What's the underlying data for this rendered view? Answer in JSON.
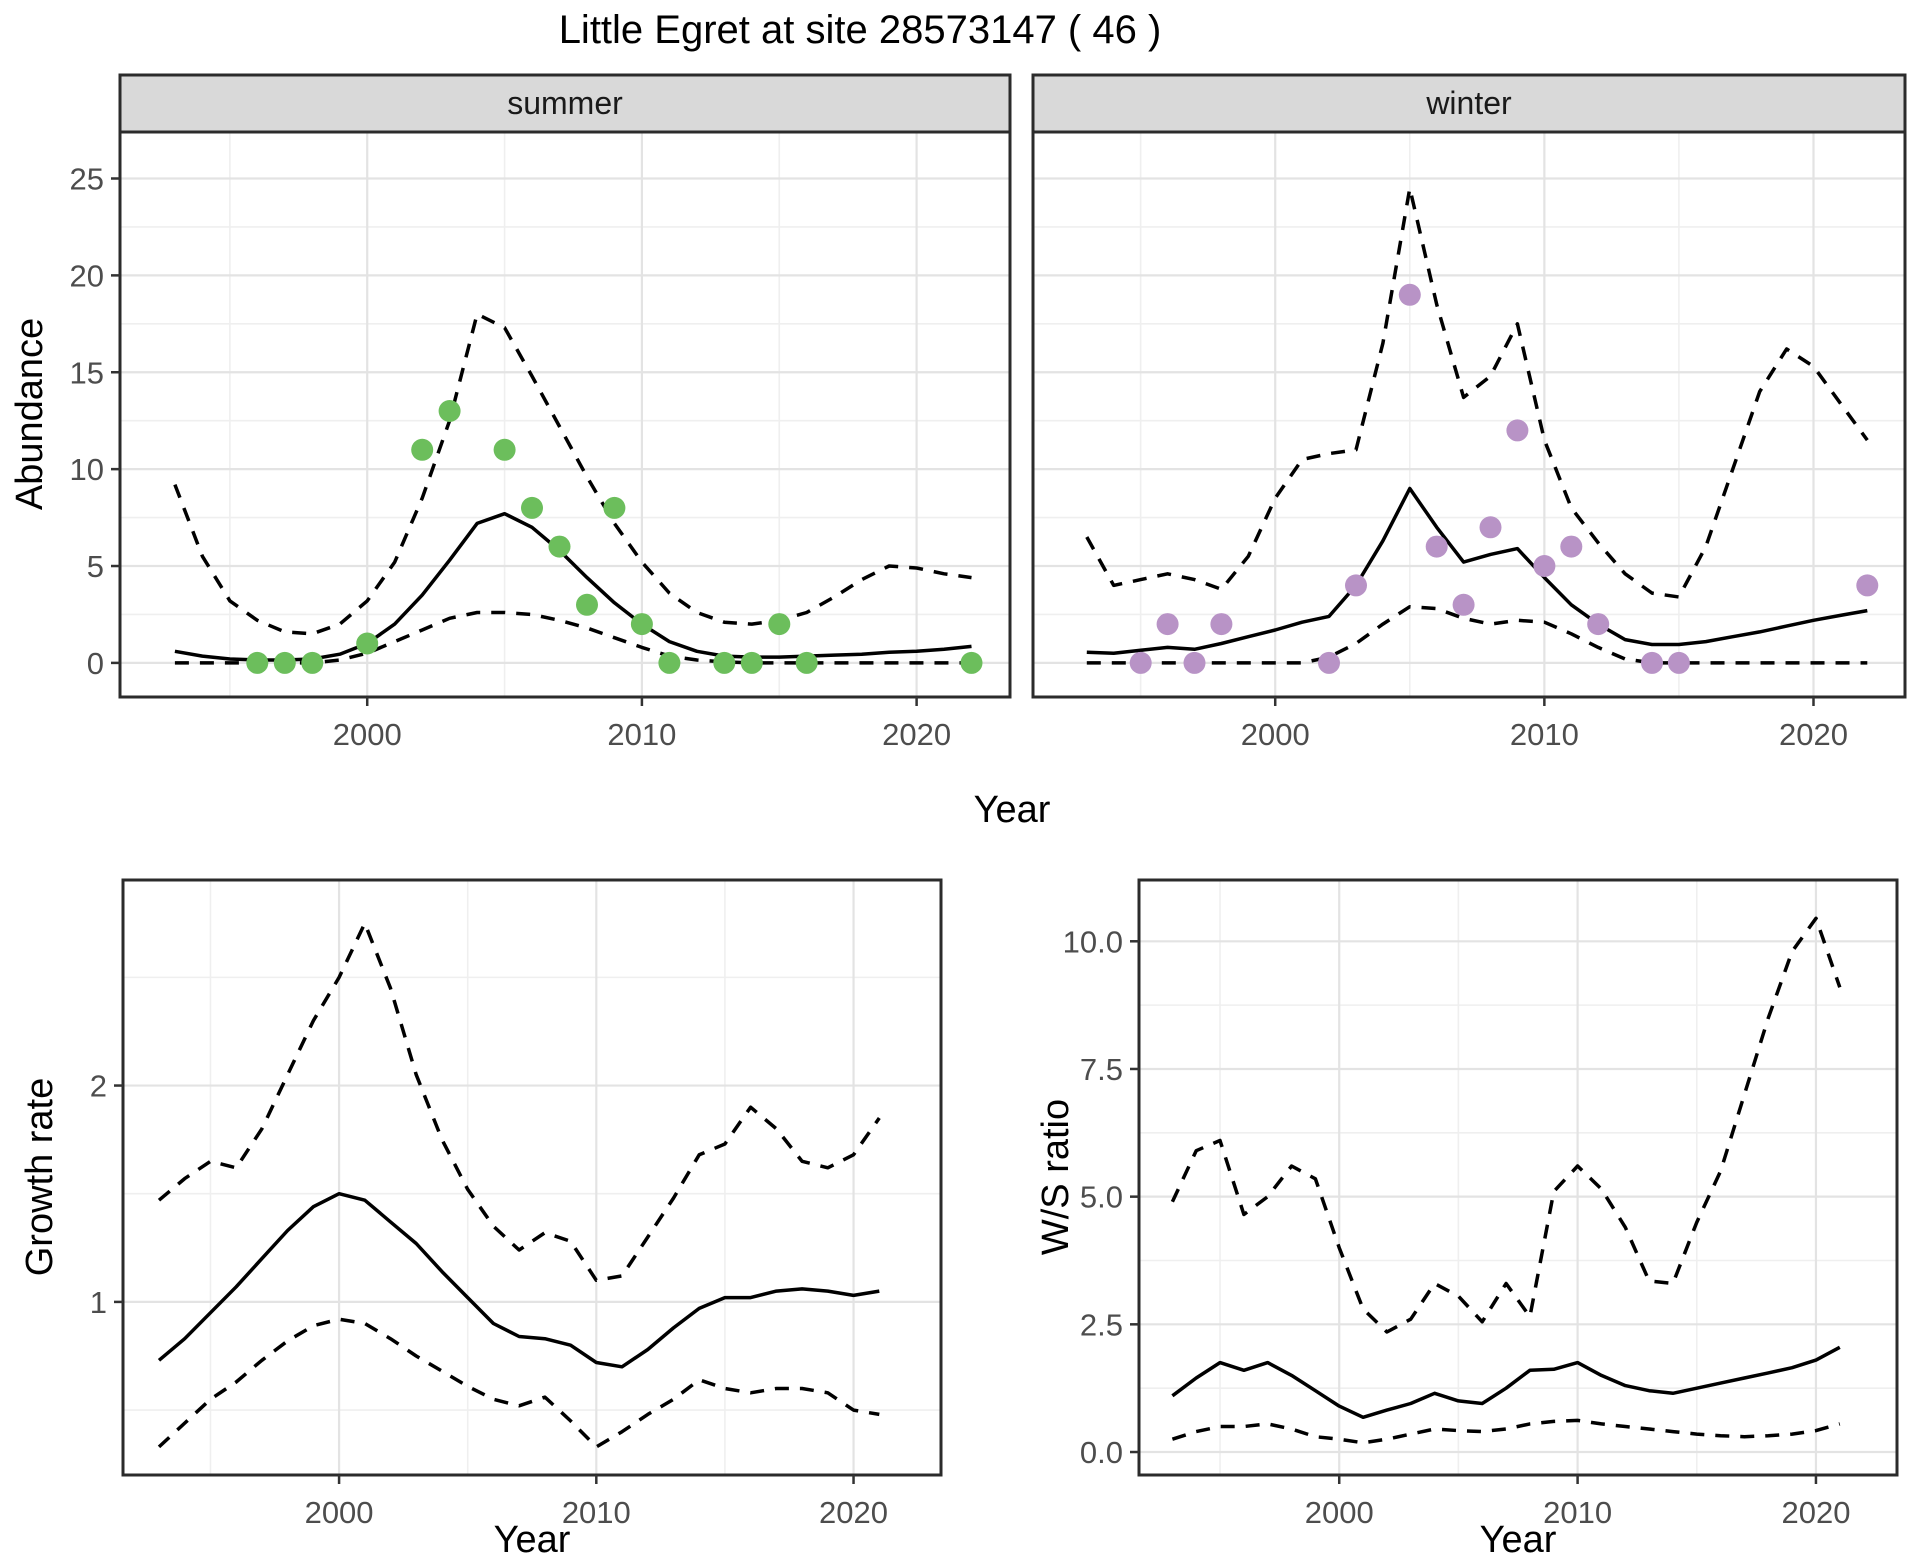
{
  "title": "Little Egret at site 28573147 ( 46 )",
  "colors": {
    "summer_point": "#6CBE5C",
    "winter_point": "#B893C6",
    "strip_bg": "#D9D9D9",
    "panel_border": "#2B2B2B",
    "grid_major": "#E3E3E3",
    "grid_minor": "#EFEFEF",
    "line": "#000000",
    "axis_text": "#4D4D4D"
  },
  "top_row": {
    "ylabel": "Abundance",
    "xlabel": "Year",
    "facets": [
      {
        "label": "summer"
      },
      {
        "label": "winter"
      }
    ]
  },
  "chart_data": [
    {
      "key": "summer",
      "type": "line",
      "facet_label": "summer",
      "x_range": [
        1991.0,
        2023.4
      ],
      "y_range": [
        -1.76,
        27.4
      ],
      "xticks": [
        2000,
        2010,
        2020
      ],
      "xtick_labels": [
        "2000",
        "2010",
        "2020"
      ],
      "x_minor": [
        1995,
        2005,
        2015
      ],
      "yticks": [
        0,
        5,
        10,
        15,
        20,
        25
      ],
      "ytick_labels": [
        "0",
        "5",
        "10",
        "15",
        "20",
        "25"
      ],
      "y_minor": [
        2.5,
        7.5,
        12.5,
        17.5,
        22.5
      ],
      "point_color": "summer_point",
      "series": {
        "mean": {
          "x": [
            1993,
            1994,
            1995,
            1996,
            1997,
            1998,
            1999,
            2000,
            2001,
            2002,
            2003,
            2004,
            2005,
            2006,
            2007,
            2008,
            2009,
            2010,
            2011,
            2012,
            2013,
            2014,
            2015,
            2016,
            2017,
            2018,
            2019,
            2020,
            2021,
            2022
          ],
          "y": [
            0.6,
            0.35,
            0.2,
            0.15,
            0.15,
            0.2,
            0.45,
            1.0,
            2.0,
            3.5,
            5.3,
            7.2,
            7.7,
            7.0,
            5.8,
            4.4,
            3.1,
            2.0,
            1.1,
            0.6,
            0.35,
            0.3,
            0.3,
            0.35,
            0.4,
            0.45,
            0.55,
            0.6,
            0.7,
            0.85
          ]
        },
        "upper": {
          "x": [
            1993,
            1994,
            1995,
            1996,
            1997,
            1998,
            1999,
            2000,
            2001,
            2002,
            2003,
            2004,
            2005,
            2006,
            2007,
            2008,
            2009,
            2010,
            2011,
            2012,
            2013,
            2014,
            2015,
            2016,
            2017,
            2018,
            2019,
            2020,
            2021,
            2022
          ],
          "y": [
            9.2,
            5.5,
            3.2,
            2.2,
            1.6,
            1.5,
            2.0,
            3.2,
            5.2,
            8.5,
            12.5,
            18.0,
            17.3,
            14.8,
            12.2,
            9.6,
            7.2,
            5.2,
            3.6,
            2.6,
            2.1,
            2.0,
            2.2,
            2.6,
            3.4,
            4.3,
            5.0,
            4.9,
            4.6,
            4.4
          ]
        },
        "lower": {
          "x": [
            1993,
            1994,
            1995,
            1996,
            1997,
            1998,
            1999,
            2000,
            2001,
            2002,
            2003,
            2004,
            2005,
            2006,
            2007,
            2008,
            2009,
            2010,
            2011,
            2012,
            2013,
            2014,
            2015,
            2016,
            2017,
            2018,
            2019,
            2020,
            2021,
            2022
          ],
          "y": [
            0,
            0,
            0,
            0,
            0,
            0,
            0.15,
            0.5,
            1.1,
            1.7,
            2.3,
            2.6,
            2.6,
            2.5,
            2.2,
            1.8,
            1.3,
            0.8,
            0.35,
            0.15,
            0.05,
            0,
            0,
            0,
            0,
            0,
            0,
            0,
            0,
            0
          ]
        }
      },
      "points": {
        "x": [
          1996,
          1997,
          1998,
          2000,
          2002,
          2003,
          2005,
          2006,
          2007,
          2008,
          2009,
          2010,
          2011,
          2013,
          2014,
          2015,
          2016,
          2022
        ],
        "y": [
          0,
          0,
          0,
          1,
          11,
          13,
          11,
          8,
          6,
          3,
          8,
          2,
          0,
          0,
          0,
          2,
          0,
          0
        ]
      }
    },
    {
      "key": "winter",
      "type": "line",
      "facet_label": "winter",
      "x_range": [
        1991.0,
        2023.4
      ],
      "y_range": [
        -1.76,
        27.4
      ],
      "xticks": [
        2000,
        2010,
        2020
      ],
      "xtick_labels": [
        "2000",
        "2010",
        "2020"
      ],
      "x_minor": [
        1995,
        2005,
        2015
      ],
      "yticks": [
        0,
        5,
        10,
        15,
        20,
        25
      ],
      "ytick_labels": [
        "0",
        "5",
        "10",
        "15",
        "20",
        "25"
      ],
      "y_minor": [
        2.5,
        7.5,
        12.5,
        17.5,
        22.5
      ],
      "point_color": "winter_point",
      "series": {
        "mean": {
          "x": [
            1993,
            1994,
            1995,
            1996,
            1997,
            1998,
            1999,
            2000,
            2001,
            2002,
            2003,
            2004,
            2005,
            2006,
            2007,
            2008,
            2009,
            2010,
            2011,
            2012,
            2013,
            2014,
            2015,
            2016,
            2017,
            2018,
            2019,
            2020,
            2021,
            2022
          ],
          "y": [
            0.55,
            0.5,
            0.65,
            0.8,
            0.7,
            1.0,
            1.35,
            1.7,
            2.1,
            2.4,
            4.0,
            6.3,
            9.0,
            7.0,
            5.2,
            5.6,
            5.9,
            4.4,
            3.0,
            2.0,
            1.2,
            0.95,
            0.95,
            1.1,
            1.35,
            1.6,
            1.9,
            2.2,
            2.45,
            2.7
          ]
        },
        "upper": {
          "x": [
            1993,
            1994,
            1995,
            1996,
            1997,
            1998,
            1999,
            2000,
            2001,
            2002,
            2003,
            2004,
            2005,
            2006,
            2007,
            2008,
            2009,
            2010,
            2011,
            2012,
            2013,
            2014,
            2015,
            2016,
            2017,
            2018,
            2019,
            2020,
            2021,
            2022
          ],
          "y": [
            6.5,
            4.0,
            4.3,
            4.6,
            4.3,
            3.8,
            5.5,
            8.5,
            10.5,
            10.8,
            11.0,
            16.5,
            24.5,
            18.5,
            13.7,
            14.8,
            17.5,
            11.5,
            8.0,
            6.2,
            4.6,
            3.6,
            3.4,
            6.0,
            10.0,
            14.0,
            16.2,
            15.3,
            13.4,
            11.5
          ]
        },
        "lower": {
          "x": [
            1993,
            1994,
            1995,
            1996,
            1997,
            1998,
            1999,
            2000,
            2001,
            2002,
            2003,
            2004,
            2005,
            2006,
            2007,
            2008,
            2009,
            2010,
            2011,
            2012,
            2013,
            2014,
            2015,
            2016,
            2017,
            2018,
            2019,
            2020,
            2021,
            2022
          ],
          "y": [
            0,
            0,
            0,
            0,
            0,
            0,
            0,
            0,
            0,
            0.3,
            1.0,
            2.0,
            2.9,
            2.8,
            2.3,
            2.0,
            2.2,
            2.1,
            1.5,
            0.8,
            0.2,
            0,
            0,
            0,
            0,
            0,
            0,
            0,
            0,
            0
          ]
        }
      },
      "points": {
        "x": [
          1995,
          1996,
          1997,
          1998,
          2002,
          2003,
          2005,
          2006,
          2007,
          2008,
          2009,
          2010,
          2011,
          2012,
          2014,
          2015,
          2022
        ],
        "y": [
          0,
          2,
          0,
          2,
          0,
          4,
          19,
          6,
          3,
          7,
          12,
          5,
          6,
          2,
          0,
          0,
          4
        ]
      }
    },
    {
      "key": "growth",
      "type": "line",
      "ylabel": "Growth rate",
      "xlabel": "Year",
      "x_range": [
        1991.6,
        2023.4
      ],
      "y_range": [
        0.2,
        2.95
      ],
      "xticks": [
        2000,
        2010,
        2020
      ],
      "xtick_labels": [
        "2000",
        "2010",
        "2020"
      ],
      "x_minor": [
        1995,
        2005,
        2015
      ],
      "yticks": [
        1,
        2
      ],
      "ytick_labels": [
        "1",
        "2"
      ],
      "y_minor": [
        0.5,
        1.5,
        2.5
      ],
      "series": {
        "mean": {
          "x": [
            1993,
            1994,
            1995,
            1996,
            1997,
            1998,
            1999,
            2000,
            2001,
            2002,
            2003,
            2004,
            2005,
            2006,
            2007,
            2008,
            2009,
            2010,
            2011,
            2012,
            2013,
            2014,
            2015,
            2016,
            2017,
            2018,
            2019,
            2020,
            2021
          ],
          "y": [
            0.73,
            0.83,
            0.95,
            1.07,
            1.2,
            1.33,
            1.44,
            1.5,
            1.47,
            1.37,
            1.27,
            1.14,
            1.02,
            0.9,
            0.84,
            0.83,
            0.8,
            0.72,
            0.7,
            0.78,
            0.88,
            0.97,
            1.02,
            1.02,
            1.05,
            1.06,
            1.05,
            1.03,
            1.05
          ]
        },
        "upper": {
          "x": [
            1993,
            1994,
            1995,
            1996,
            1997,
            1998,
            1999,
            2000,
            2001,
            2002,
            2003,
            2004,
            2005,
            2006,
            2007,
            2008,
            2009,
            2010,
            2011,
            2012,
            2013,
            2014,
            2015,
            2016,
            2017,
            2018,
            2019,
            2020,
            2021
          ],
          "y": [
            1.47,
            1.57,
            1.65,
            1.62,
            1.8,
            2.05,
            2.3,
            2.5,
            2.75,
            2.45,
            2.05,
            1.75,
            1.52,
            1.35,
            1.24,
            1.32,
            1.28,
            1.1,
            1.12,
            1.3,
            1.48,
            1.68,
            1.73,
            1.9,
            1.8,
            1.65,
            1.62,
            1.68,
            1.85
          ]
        },
        "lower": {
          "x": [
            1993,
            1994,
            1995,
            1996,
            1997,
            1998,
            1999,
            2000,
            2001,
            2002,
            2003,
            2004,
            2005,
            2006,
            2007,
            2008,
            2009,
            2010,
            2011,
            2012,
            2013,
            2014,
            2015,
            2016,
            2017,
            2018,
            2019,
            2020,
            2021
          ],
          "y": [
            0.33,
            0.44,
            0.55,
            0.63,
            0.73,
            0.82,
            0.89,
            0.92,
            0.9,
            0.83,
            0.75,
            0.68,
            0.61,
            0.55,
            0.52,
            0.56,
            0.45,
            0.33,
            0.4,
            0.48,
            0.55,
            0.64,
            0.6,
            0.58,
            0.6,
            0.6,
            0.58,
            0.5,
            0.48
          ]
        }
      }
    },
    {
      "key": "ws",
      "type": "line",
      "ylabel": "W/S ratio",
      "xlabel": "Year",
      "x_range": [
        1991.6,
        2023.4
      ],
      "y_range": [
        -0.45,
        11.2
      ],
      "xticks": [
        2000,
        2010,
        2020
      ],
      "xtick_labels": [
        "2000",
        "2010",
        "2020"
      ],
      "x_minor": [
        1995,
        2005,
        2015
      ],
      "yticks": [
        0,
        2.5,
        5,
        7.5,
        10
      ],
      "ytick_labels": [
        "0.0",
        "2.5",
        "5.0",
        "7.5",
        "10.0"
      ],
      "y_minor": [
        1.25,
        3.75,
        6.25,
        8.75
      ],
      "series": {
        "mean": {
          "x": [
            1993,
            1994,
            1995,
            1996,
            1997,
            1998,
            1999,
            2000,
            2001,
            2002,
            2003,
            2004,
            2005,
            2006,
            2007,
            2008,
            2009,
            2010,
            2011,
            2012,
            2013,
            2014,
            2015,
            2016,
            2017,
            2018,
            2019,
            2020,
            2021
          ],
          "y": [
            1.1,
            1.45,
            1.75,
            1.6,
            1.75,
            1.5,
            1.2,
            0.9,
            0.68,
            0.82,
            0.95,
            1.15,
            1.0,
            0.95,
            1.25,
            1.6,
            1.62,
            1.75,
            1.5,
            1.3,
            1.2,
            1.15,
            1.25,
            1.35,
            1.45,
            1.55,
            1.65,
            1.8,
            2.05
          ]
        },
        "upper": {
          "x": [
            1993,
            1994,
            1995,
            1996,
            1997,
            1998,
            1999,
            2000,
            2001,
            2002,
            2003,
            2004,
            2005,
            2006,
            2007,
            2008,
            2009,
            2010,
            2011,
            2012,
            2013,
            2014,
            2015,
            2016,
            2017,
            2018,
            2019,
            2020,
            2021
          ],
          "y": [
            4.9,
            5.9,
            6.1,
            4.65,
            5.0,
            5.6,
            5.35,
            4.0,
            2.8,
            2.35,
            2.6,
            3.3,
            3.05,
            2.55,
            3.3,
            2.65,
            5.1,
            5.6,
            5.15,
            4.4,
            3.35,
            3.3,
            4.5,
            5.5,
            7.0,
            8.5,
            9.8,
            10.45,
            9.1
          ]
        },
        "lower": {
          "x": [
            1993,
            1994,
            1995,
            1996,
            1997,
            1998,
            1999,
            2000,
            2001,
            2002,
            2003,
            2004,
            2005,
            2006,
            2007,
            2008,
            2009,
            2010,
            2011,
            2012,
            2013,
            2014,
            2015,
            2016,
            2017,
            2018,
            2019,
            2020,
            2021
          ],
          "y": [
            0.25,
            0.4,
            0.5,
            0.5,
            0.55,
            0.45,
            0.3,
            0.25,
            0.18,
            0.25,
            0.35,
            0.45,
            0.42,
            0.4,
            0.45,
            0.55,
            0.6,
            0.62,
            0.55,
            0.5,
            0.45,
            0.4,
            0.35,
            0.32,
            0.3,
            0.32,
            0.35,
            0.42,
            0.55
          ]
        }
      }
    }
  ]
}
